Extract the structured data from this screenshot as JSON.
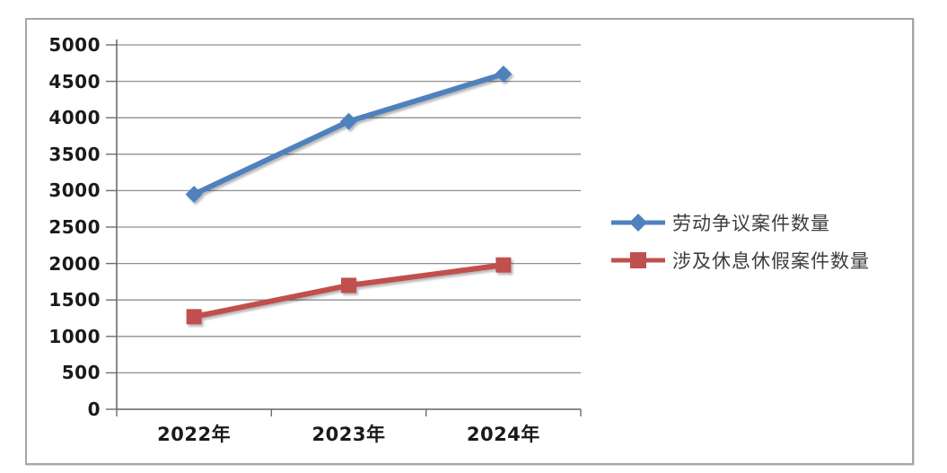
{
  "chart_data": {
    "type": "line",
    "categories": [
      "2022年",
      "2023年",
      "2024年"
    ],
    "series": [
      {
        "name": "劳动争议案件数量",
        "values": [
          2950,
          3950,
          4600
        ],
        "color": "#4f81bd",
        "marker": "diamond"
      },
      {
        "name": "涉及休息休假案件数量",
        "values": [
          1270,
          1700,
          1980
        ],
        "color": "#c0504d",
        "marker": "square"
      }
    ],
    "title": "",
    "xlabel": "",
    "ylabel": "",
    "ylim": [
      0,
      5000
    ],
    "ytick_step": 500,
    "y_tick_labels": [
      "0",
      "500",
      "1000",
      "1500",
      "2000",
      "2500",
      "3000",
      "3500",
      "4000",
      "4500",
      "5000"
    ],
    "grid": true,
    "legend_position": "right",
    "colors": {
      "gridline": "#8f8f8f",
      "axis": "#6d6d6d",
      "tick_label": "#1a1a1a",
      "legend_text": "#3d3d3d",
      "frame_border": "#a6a6a6"
    }
  }
}
